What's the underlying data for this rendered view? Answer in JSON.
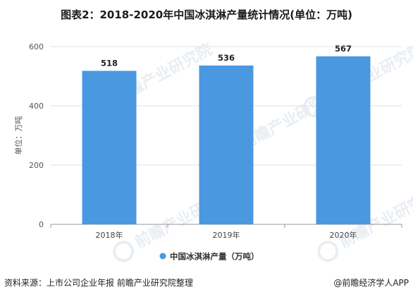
{
  "chart_data": {
    "type": "bar",
    "title": "图表2：2018-2020年中国冰淇淋产量统计情况(单位：万吨)",
    "ylabel": "单位：万吨",
    "categories": [
      "2018年",
      "2019年",
      "2020年"
    ],
    "series": [
      {
        "name": "中国冰淇淋产量（万吨）",
        "values": [
          518,
          536,
          567
        ]
      }
    ],
    "ylim": [
      0,
      600
    ],
    "yticks": [
      0,
      200,
      400,
      600
    ],
    "grid": true,
    "legend": "bottom",
    "bar_color": "#4a98e0"
  },
  "footer": {
    "source": "资料来源：上市公司企业年报 前瞻产业研究院整理",
    "brand": "@前瞻经济学人APP"
  },
  "watermark": {
    "text": "前瞻产业研究院"
  }
}
